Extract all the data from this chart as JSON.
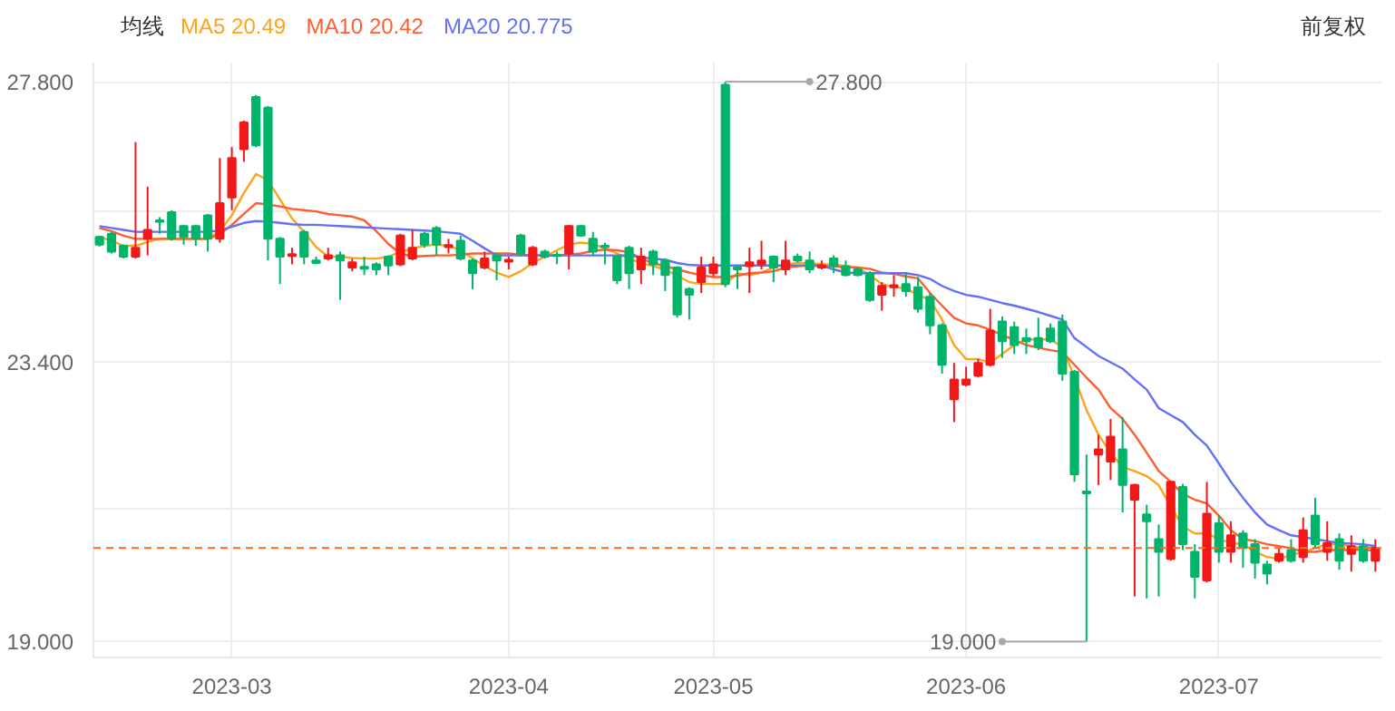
{
  "chart_data": {
    "type": "candlestick",
    "legend_title": "均线",
    "grid": true,
    "ylim": [
      18.75,
      28.1
    ],
    "yticks": [
      {
        "value": 19,
        "label": "19.000"
      },
      {
        "value": 21.1,
        "label": null
      },
      {
        "value": 23.4,
        "label": "23.400"
      },
      {
        "value": 25.77,
        "label": null
      },
      {
        "value": 27.8,
        "label": "27.800"
      }
    ],
    "categories": [
      null,
      null,
      null,
      null,
      null,
      null,
      null,
      null,
      null,
      null,
      null,
      "2023-03",
      null,
      null,
      null,
      null,
      null,
      null,
      null,
      null,
      null,
      null,
      null,
      null,
      null,
      null,
      null,
      null,
      null,
      null,
      null,
      null,
      null,
      null,
      "2023-04",
      null,
      null,
      null,
      null,
      null,
      null,
      null,
      null,
      null,
      null,
      null,
      null,
      null,
      null,
      null,
      null,
      "2023-05",
      null,
      null,
      null,
      null,
      null,
      null,
      null,
      null,
      null,
      null,
      null,
      null,
      null,
      null,
      null,
      null,
      null,
      null,
      null,
      null,
      "2023-06",
      null,
      null,
      null,
      null,
      null,
      null,
      null,
      null,
      null,
      null,
      null,
      null,
      null,
      null,
      null,
      null,
      null,
      null,
      null,
      null,
      "2023-07",
      null,
      null,
      null,
      null,
      null,
      null,
      null,
      null,
      null,
      null,
      null,
      null,
      null
    ],
    "ohlc": [
      [
        25.36,
        25.38,
        25.21,
        25.24
      ],
      [
        25.41,
        25.44,
        25.1,
        25.13
      ],
      [
        25.22,
        25.24,
        25.02,
        25.05
      ],
      [
        25.05,
        26.85,
        25.02,
        25.19
      ],
      [
        25.33,
        26.15,
        25.07,
        25.47
      ],
      [
        25.62,
        25.67,
        25.41,
        25.6
      ],
      [
        25.75,
        25.78,
        25.3,
        25.33
      ],
      [
        25.53,
        25.55,
        25.24,
        25.36
      ],
      [
        25.53,
        25.55,
        25.22,
        25.33
      ],
      [
        25.7,
        25.72,
        25.13,
        25.33
      ],
      [
        25.33,
        26.6,
        25.27,
        25.89
      ],
      [
        25.98,
        26.77,
        25.78,
        26.6
      ],
      [
        26.74,
        27.19,
        26.54,
        27.16
      ],
      [
        27.56,
        27.59,
        26.77,
        26.8
      ],
      [
        27.39,
        27.42,
        24.99,
        25.33
      ],
      [
        25.33,
        25.36,
        24.62,
        25.05
      ],
      [
        25.06,
        25.19,
        24.93,
        25.09
      ],
      [
        25.44,
        25.47,
        24.93,
        25.05
      ],
      [
        24.99,
        25.05,
        24.93,
        24.95
      ],
      [
        25.02,
        25.19,
        24.99,
        25.07
      ],
      [
        25.07,
        25.13,
        24.37,
        24.99
      ],
      [
        24.88,
        25.02,
        24.82,
        24.96
      ],
      [
        24.89,
        25.05,
        24.76,
        24.86
      ],
      [
        24.93,
        24.96,
        24.76,
        24.85
      ],
      [
        25.05,
        25.07,
        24.76,
        24.91
      ],
      [
        24.93,
        25.41,
        24.9,
        25.38
      ],
      [
        25.02,
        25.47,
        24.99,
        25.19
      ],
      [
        25.41,
        25.44,
        25.19,
        25.24
      ],
      [
        25.5,
        25.53,
        25.07,
        25.24
      ],
      [
        25.2,
        25.33,
        25.1,
        25.23
      ],
      [
        25.3,
        25.38,
        24.99,
        25.02
      ],
      [
        24.99,
        25.02,
        24.54,
        24.79
      ],
      [
        24.88,
        25.13,
        24.85,
        25.02
      ],
      [
        25.07,
        25.1,
        24.68,
        24.99
      ],
      [
        24.97,
        25.05,
        24.85,
        25.0
      ],
      [
        25.38,
        25.41,
        25.05,
        25.1
      ],
      [
        24.93,
        25.22,
        24.9,
        25.19
      ],
      [
        25.13,
        25.16,
        25.02,
        25.05
      ],
      [
        25.08,
        25.13,
        24.93,
        25.06
      ],
      [
        25.1,
        25.55,
        24.85,
        25.53
      ],
      [
        25.53,
        25.55,
        25.36,
        25.38
      ],
      [
        25.33,
        25.44,
        25.07,
        25.13
      ],
      [
        25.22,
        25.27,
        24.93,
        25.2
      ],
      [
        25.05,
        25.07,
        24.62,
        24.68
      ],
      [
        25.19,
        25.22,
        24.54,
        24.79
      ],
      [
        24.85,
        25.19,
        24.62,
        25.05
      ],
      [
        25.13,
        25.16,
        24.76,
        24.93
      ],
      [
        24.99,
        25.02,
        24.51,
        24.76
      ],
      [
        24.88,
        24.9,
        24.09,
        24.14
      ],
      [
        24.54,
        24.57,
        24.06,
        24.45
      ],
      [
        24.65,
        25.05,
        24.48,
        24.88
      ],
      [
        24.79,
        25.05,
        24.74,
        24.93
      ],
      [
        27.75,
        27.8,
        24.57,
        24.62
      ],
      [
        24.88,
        24.9,
        24.54,
        24.85
      ],
      [
        24.9,
        25.19,
        24.48,
        24.96
      ],
      [
        24.93,
        25.3,
        24.85,
        24.99
      ],
      [
        25.05,
        25.07,
        24.65,
        24.88
      ],
      [
        24.85,
        25.3,
        24.76,
        24.99
      ],
      [
        25.05,
        25.1,
        24.96,
        24.99
      ],
      [
        24.99,
        25.13,
        24.79,
        24.85
      ],
      [
        24.88,
        24.99,
        24.85,
        24.91
      ],
      [
        25.02,
        25.07,
        24.79,
        24.9
      ],
      [
        24.9,
        24.99,
        24.74,
        24.76
      ],
      [
        24.85,
        24.88,
        24.74,
        24.76
      ],
      [
        24.79,
        24.82,
        24.34,
        24.37
      ],
      [
        24.45,
        24.65,
        24.2,
        24.59
      ],
      [
        24.57,
        24.76,
        24.42,
        24.6
      ],
      [
        24.62,
        24.79,
        24.42,
        24.51
      ],
      [
        24.57,
        24.73,
        24.17,
        24.23
      ],
      [
        24.42,
        24.48,
        23.83,
        23.97
      ],
      [
        23.97,
        24.0,
        23.21,
        23.35
      ],
      [
        22.81,
        23.38,
        22.45,
        23.12
      ],
      [
        23.04,
        23.32,
        23.01,
        23.12
      ],
      [
        23.18,
        23.44,
        23.15,
        23.38
      ],
      [
        23.35,
        24.23,
        23.32,
        23.89
      ],
      [
        24.03,
        24.11,
        23.46,
        23.72
      ],
      [
        23.94,
        24.03,
        23.52,
        23.66
      ],
      [
        23.77,
        23.92,
        23.52,
        23.72
      ],
      [
        23.77,
        24.09,
        23.58,
        23.63
      ],
      [
        23.92,
        24.0,
        23.69,
        23.72
      ],
      [
        24.03,
        24.14,
        23.1,
        23.21
      ],
      [
        23.24,
        23.27,
        21.51,
        21.63
      ],
      [
        21.36,
        21.94,
        19.0,
        21.33
      ],
      [
        21.94,
        22.25,
        21.46,
        22.02
      ],
      [
        21.83,
        22.5,
        21.54,
        22.22
      ],
      [
        22.02,
        22.53,
        21.03,
        21.46
      ],
      [
        21.23,
        21.48,
        19.71,
        21.46
      ],
      [
        21.0,
        21.15,
        19.68,
        20.89
      ],
      [
        20.61,
        20.84,
        19.71,
        20.41
      ],
      [
        20.3,
        21.53,
        20.27,
        21.51
      ],
      [
        21.43,
        21.48,
        20.44,
        20.53
      ],
      [
        20.41,
        20.53,
        19.68,
        20.02
      ],
      [
        19.96,
        21.51,
        19.93,
        21.01
      ],
      [
        20.86,
        20.98,
        20.24,
        20.41
      ],
      [
        20.41,
        20.89,
        20.24,
        20.67
      ],
      [
        20.7,
        20.75,
        20.16,
        20.47
      ],
      [
        20.53,
        20.61,
        19.99,
        20.24
      ],
      [
        20.21,
        20.27,
        19.9,
        20.07
      ],
      [
        20.27,
        20.47,
        20.24,
        20.38
      ],
      [
        20.44,
        20.61,
        20.24,
        20.27
      ],
      [
        20.33,
        20.95,
        20.24,
        20.75
      ],
      [
        20.98,
        21.26,
        20.47,
        20.53
      ],
      [
        20.41,
        20.89,
        20.27,
        20.55
      ],
      [
        20.61,
        20.7,
        20.13,
        20.27
      ],
      [
        20.38,
        20.67,
        20.1,
        20.5
      ],
      [
        20.5,
        20.61,
        20.24,
        20.27
      ],
      [
        20.27,
        20.61,
        20.1,
        20.47
      ]
    ],
    "colors": [
      "#00b46a",
      "#00b46a",
      "#00b46a",
      "#f21818",
      "#f21818",
      "#00b46a",
      "#00b46a",
      "#00b46a",
      "#00b46a",
      "#00b46a",
      "#f21818",
      "#f21818",
      "#f21818",
      "#00b46a",
      "#00b46a",
      "#00b46a",
      "#f21818",
      "#00b46a",
      "#00b46a",
      "#f21818",
      "#00b46a",
      "#f21818",
      "#00b46a",
      "#00b46a",
      "#00b46a",
      "#f21818",
      "#f21818",
      "#00b46a",
      "#00b46a",
      "#f21818",
      "#00b46a",
      "#00b46a",
      "#f21818",
      "#00b46a",
      "#f21818",
      "#00b46a",
      "#f21818",
      "#00b46a",
      "#00b46a",
      "#f21818",
      "#00b46a",
      "#00b46a",
      "#00b46a",
      "#00b46a",
      "#00b46a",
      "#f21818",
      "#00b46a",
      "#00b46a",
      "#00b46a",
      "#00b46a",
      "#f21818",
      "#f21818",
      "#00b46a",
      "#00b46a",
      "#f21818",
      "#f21818",
      "#00b46a",
      "#f21818",
      "#00b46a",
      "#00b46a",
      "#f21818",
      "#00b46a",
      "#00b46a",
      "#00b46a",
      "#00b46a",
      "#f21818",
      "#f21818",
      "#00b46a",
      "#00b46a",
      "#00b46a",
      "#00b46a",
      "#f21818",
      "#f21818",
      "#f21818",
      "#f21818",
      "#00b46a",
      "#00b46a",
      "#00b46a",
      "#00b46a",
      "#00b46a",
      "#00b46a",
      "#00b46a",
      "#00b46a",
      "#f21818",
      "#f21818",
      "#00b46a",
      "#f21818",
      "#00b46a",
      "#00b46a",
      "#f21818",
      "#00b46a",
      "#00b46a",
      "#f21818",
      "#00b46a",
      "#f21818",
      "#00b46a",
      "#00b46a",
      "#00b46a",
      "#f21818",
      "#00b46a",
      "#f21818",
      "#00b46a",
      "#f21818",
      "#00b46a",
      "#f21818",
      "#00b46a",
      "#f21818"
    ],
    "series": [
      {
        "name": "MA5 20.49",
        "type": "line",
        "color": "#ffa31a",
        "values": [
          25.36,
          25.3,
          25.22,
          25.22,
          25.28,
          25.33,
          25.33,
          25.33,
          25.33,
          25.33,
          25.45,
          25.7,
          26.05,
          26.35,
          26.25,
          25.95,
          25.65,
          25.44,
          25.2,
          25.05,
          25.05,
          25.03,
          25.02,
          25.02,
          25.05,
          25.12,
          25.18,
          25.22,
          25.24,
          25.22,
          25.15,
          25.02,
          24.9,
          24.8,
          24.73,
          24.82,
          24.95,
          25.05,
          25.15,
          25.24,
          25.27,
          25.25,
          25.18,
          25.1,
          25.02,
          24.95,
          24.9,
          24.85,
          24.75,
          24.65,
          24.62,
          24.62,
          24.62,
          24.79,
          24.76,
          24.8,
          24.88,
          24.93,
          24.95,
          24.95,
          24.93,
          24.93,
          24.9,
          24.88,
          24.76,
          24.62,
          24.57,
          24.55,
          24.45,
          24.37,
          24.06,
          23.66,
          23.44,
          23.44,
          23.38,
          23.52,
          23.66,
          23.75,
          23.75,
          23.75,
          23.63,
          23.15,
          22.64,
          22.25,
          21.97,
          21.74,
          21.68,
          21.6,
          21.46,
          21.12,
          20.81,
          20.7,
          20.7,
          20.61,
          20.55,
          20.53,
          20.41,
          20.33,
          20.3,
          20.36,
          20.41,
          20.47,
          20.53,
          20.53,
          20.5,
          20.47,
          20.49
        ]
      },
      {
        "name": "MA10 20.42",
        "type": "line",
        "color": "#ff5f2e",
        "values": [
          25.5,
          25.45,
          25.38,
          25.33,
          25.33,
          25.33,
          25.33,
          25.33,
          25.33,
          25.33,
          25.4,
          25.55,
          25.72,
          25.89,
          25.87,
          25.84,
          25.8,
          25.78,
          25.76,
          25.72,
          25.7,
          25.68,
          25.62,
          25.45,
          25.25,
          25.1,
          25.05,
          25.06,
          25.07,
          25.07,
          25.08,
          25.1,
          25.1,
          25.1,
          25.1,
          25.08,
          25.07,
          25.07,
          25.07,
          25.08,
          25.1,
          25.14,
          25.16,
          25.15,
          25.12,
          25.02,
          24.95,
          24.9,
          24.85,
          24.8,
          24.76,
          24.73,
          24.73,
          24.75,
          24.79,
          24.8,
          24.82,
          24.88,
          24.9,
          24.91,
          24.9,
          24.9,
          24.88,
          24.88,
          24.86,
          24.8,
          24.78,
          24.74,
          24.71,
          24.48,
          24.28,
          24.09,
          24.0,
          23.97,
          23.9,
          23.82,
          23.74,
          23.66,
          23.62,
          23.58,
          23.55,
          23.35,
          23.15,
          22.96,
          22.67,
          22.5,
          22.25,
          21.97,
          21.68,
          21.51,
          21.32,
          21.23,
          21.17,
          20.98,
          20.75,
          20.61,
          20.58,
          20.53,
          20.5,
          20.47,
          20.41,
          20.41,
          20.44,
          20.44,
          20.44,
          20.45,
          20.42
        ]
      },
      {
        "name": "MA20 20.775",
        "type": "line",
        "color": "#6470f5",
        "values": [
          25.53,
          25.5,
          25.47,
          25.44,
          25.44,
          25.44,
          25.44,
          25.44,
          25.44,
          25.44,
          25.46,
          25.52,
          25.58,
          25.61,
          25.6,
          25.58,
          25.56,
          25.55,
          25.55,
          25.54,
          25.53,
          25.52,
          25.51,
          25.5,
          25.49,
          25.48,
          25.47,
          25.46,
          25.45,
          25.43,
          25.41,
          25.3,
          25.18,
          25.07,
          25.07,
          25.07,
          25.07,
          25.07,
          25.07,
          25.07,
          25.07,
          25.07,
          25.07,
          25.07,
          25.07,
          25.04,
          25.02,
          25.0,
          24.95,
          24.92,
          24.91,
          24.91,
          24.91,
          24.91,
          24.91,
          24.91,
          24.91,
          24.91,
          24.91,
          24.91,
          24.91,
          24.85,
          24.8,
          24.79,
          24.79,
          24.79,
          24.79,
          24.79,
          24.76,
          24.7,
          24.59,
          24.51,
          24.45,
          24.42,
          24.37,
          24.32,
          24.28,
          24.23,
          24.18,
          24.12,
          24.06,
          23.77,
          23.63,
          23.49,
          23.39,
          23.29,
          23.12,
          22.96,
          22.67,
          22.56,
          22.45,
          22.25,
          22.08,
          21.8,
          21.51,
          21.26,
          21.03,
          20.84,
          20.75,
          20.67,
          20.64,
          20.61,
          20.58,
          20.55,
          20.54,
          20.53,
          20.5
        ]
      }
    ],
    "ref_lines": [
      {
        "axis": "y",
        "value": 20.47,
        "color": "#ff6a1a",
        "line_style": "dashed"
      }
    ],
    "annotations": [
      "27.800",
      "19.000",
      "前复权"
    ]
  }
}
